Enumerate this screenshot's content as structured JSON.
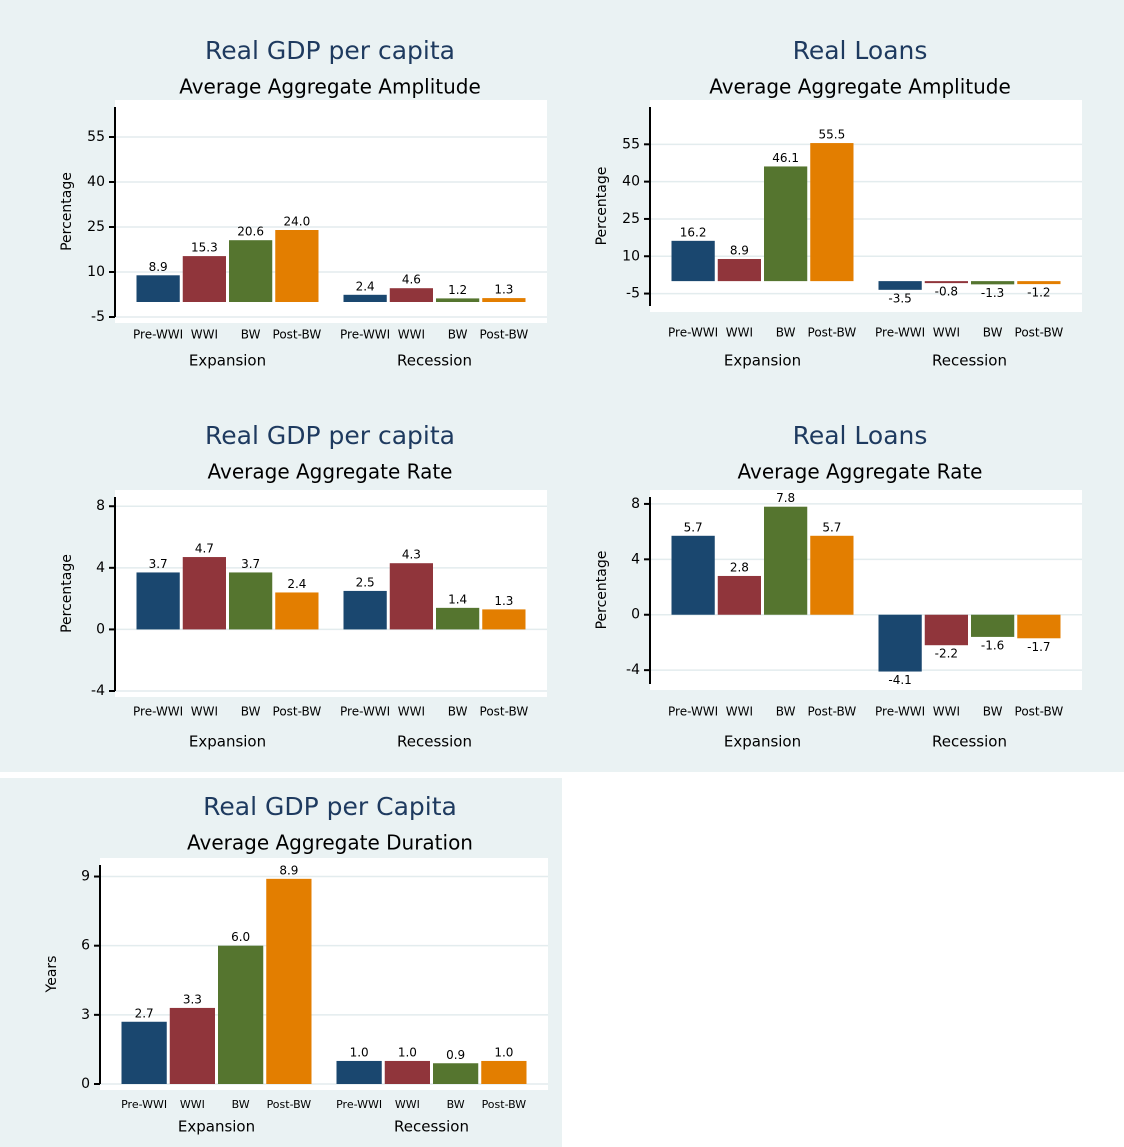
{
  "chart_data": [
    {
      "type": "bar",
      "title": "Real GDP per capita",
      "subtitle": "Average Aggregate Amplitude",
      "ylabel": "Percentage",
      "groups": [
        "Expansion",
        "Recession"
      ],
      "categories": [
        "Pre-WWI",
        "WWI",
        "BW",
        "Post-BW",
        "Pre-WWI",
        "WWI",
        "BW",
        "Post-BW"
      ],
      "values": [
        8.9,
        15.3,
        20.6,
        24.0,
        2.4,
        4.6,
        1.2,
        1.3
      ],
      "value_labels": [
        "8.9",
        "15.3",
        "20.6",
        "24.0",
        "2.4",
        "4.6",
        "1.2",
        "1.3"
      ],
      "colors": [
        "#1a476f",
        "#90353b",
        "#55752f",
        "#e37e00"
      ],
      "ylim": [
        -5,
        65
      ],
      "yticks": [
        -5,
        10,
        25,
        40,
        55
      ],
      "grid": true
    },
    {
      "type": "bar",
      "title": "Real Loans",
      "subtitle": "Average Aggregate Amplitude",
      "ylabel": "Percentage",
      "groups": [
        "Expansion",
        "Recession"
      ],
      "categories": [
        "Pre-WWI",
        "WWI",
        "BW",
        "Post-BW",
        "Pre-WWI",
        "WWI",
        "BW",
        "Post-BW"
      ],
      "values": [
        16.2,
        8.9,
        46.1,
        55.5,
        -3.5,
        -0.8,
        -1.3,
        -1.2
      ],
      "value_labels": [
        "16.2",
        "8.9",
        "46.1",
        "55.5",
        "-3.5",
        "-0.8",
        "-1.3",
        "-1.2"
      ],
      "colors": [
        "#1a476f",
        "#90353b",
        "#55752f",
        "#e37e00"
      ],
      "ylim": [
        -10,
        70
      ],
      "yticks": [
        -5,
        10,
        25,
        40,
        55
      ],
      "grid": true
    },
    {
      "type": "bar",
      "title": "Real GDP per capita",
      "subtitle": "Average Aggregate Rate",
      "ylabel": "Percentage",
      "groups": [
        "Expansion",
        "Recession"
      ],
      "categories": [
        "Pre-WWI",
        "WWI",
        "BW",
        "Post-BW",
        "Pre-WWI",
        "WWI",
        "BW",
        "Post-BW"
      ],
      "values": [
        3.7,
        4.7,
        3.7,
        2.4,
        2.5,
        4.3,
        1.4,
        1.3
      ],
      "value_labels": [
        "3.7",
        "4.7",
        "3.7",
        "2.4",
        "2.5",
        "4.3",
        "1.4",
        "1.3"
      ],
      "colors": [
        "#1a476f",
        "#90353b",
        "#55752f",
        "#e37e00"
      ],
      "ylim": [
        -4,
        8.6
      ],
      "yticks": [
        -4,
        0,
        4,
        8
      ],
      "grid": true
    },
    {
      "type": "bar",
      "title": "Real Loans",
      "subtitle": "Average Aggregate Rate",
      "ylabel": "Percentage",
      "groups": [
        "Expansion",
        "Recession"
      ],
      "categories": [
        "Pre-WWI",
        "WWI",
        "BW",
        "Post-BW",
        "Pre-WWI",
        "WWI",
        "BW",
        "Post-BW"
      ],
      "values": [
        5.7,
        2.8,
        7.8,
        5.7,
        -4.1,
        -2.2,
        -1.6,
        -1.7
      ],
      "value_labels": [
        "5.7",
        "2.8",
        "7.8",
        "5.7",
        "-4.1",
        "-2.2",
        "-1.6",
        "-1.7"
      ],
      "colors": [
        "#1a476f",
        "#90353b",
        "#55752f",
        "#e37e00"
      ],
      "ylim": [
        -5,
        8.5
      ],
      "yticks": [
        -4,
        0,
        4,
        8
      ],
      "grid": true
    },
    {
      "type": "bar",
      "title": "Real GDP per Capita",
      "subtitle": "Average Aggregate Duration",
      "ylabel": "Years",
      "groups": [
        "Expansion",
        "Recession"
      ],
      "categories": [
        "Pre-WWI",
        "WWI",
        "BW",
        "Post-BW",
        "Pre-WWI",
        "WWI",
        "BW",
        "Post-BW"
      ],
      "values": [
        2.7,
        3.3,
        6.0,
        8.9,
        1.0,
        1.0,
        0.9,
        1.0
      ],
      "value_labels": [
        "2.7",
        "3.3",
        "6.0",
        "8.9",
        "1.0",
        "1.0",
        "0.9",
        "1.0"
      ],
      "colors": [
        "#1a476f",
        "#90353b",
        "#55752f",
        "#e37e00"
      ],
      "ylim": [
        0,
        9.5
      ],
      "yticks": [
        0,
        3,
        6,
        9
      ],
      "grid": true
    }
  ]
}
